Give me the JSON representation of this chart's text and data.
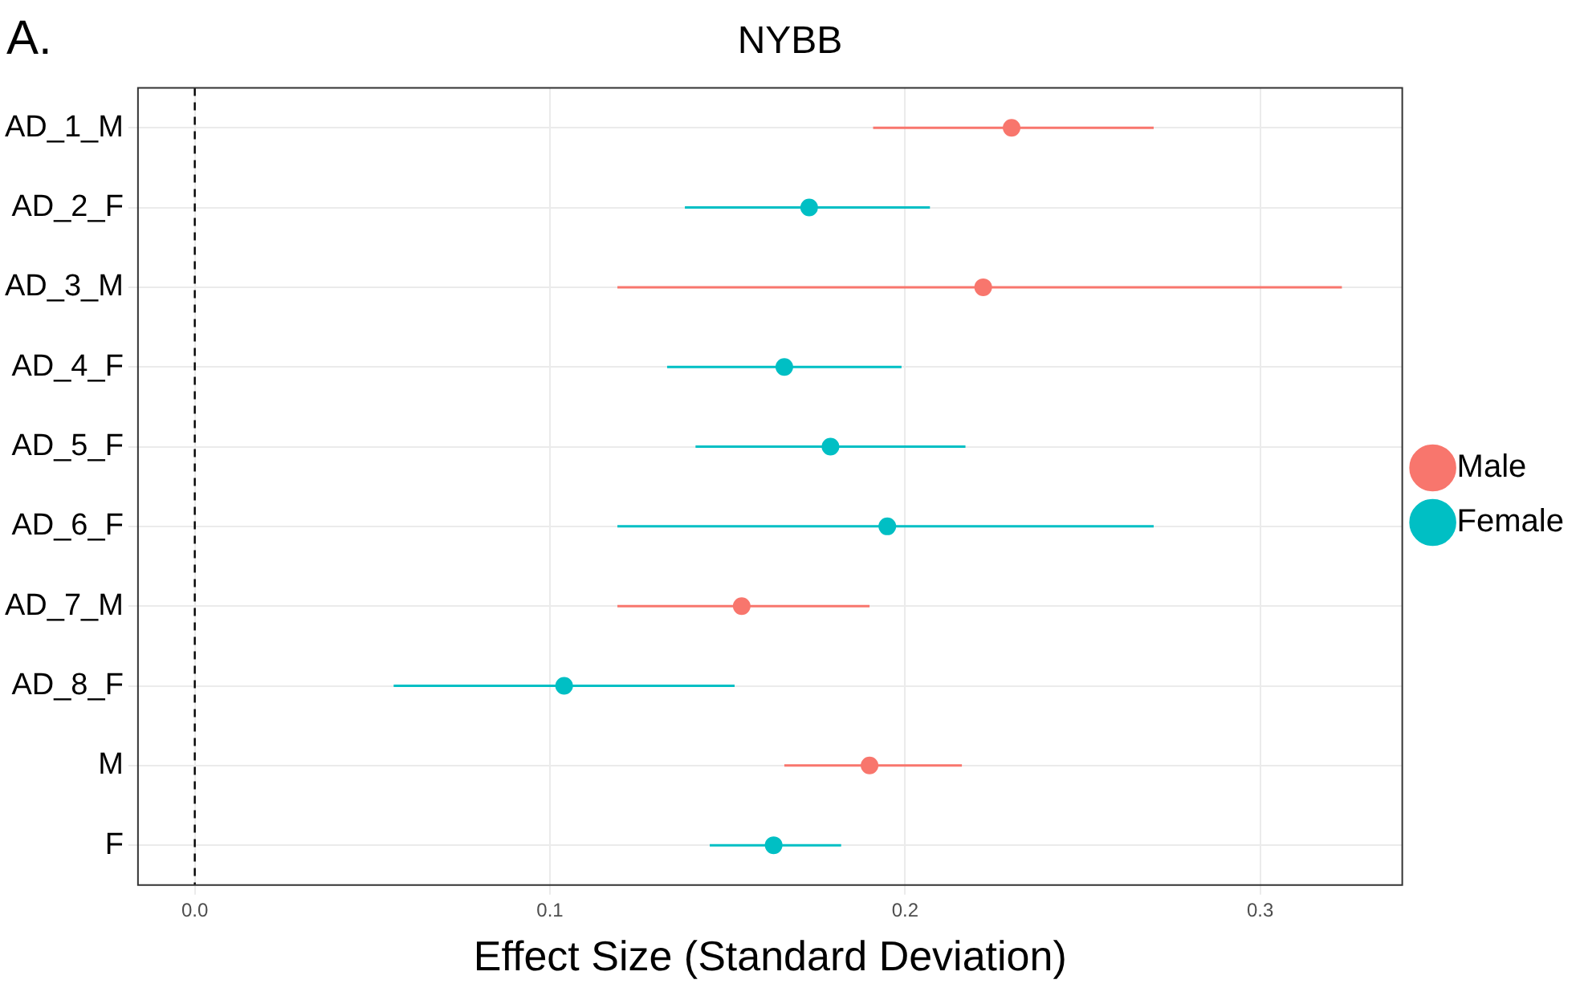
{
  "chart_data": {
    "type": "scatter",
    "orientation": "horizontal",
    "title": "NYBB",
    "xlabel": "Effect Size (Standard Deviation)",
    "annotations": [
      "A."
    ],
    "categories": [
      "AD_1_M",
      "AD_2_F",
      "AD_3_M",
      "AD_4_F",
      "AD_5_F",
      "AD_6_F",
      "AD_7_M",
      "AD_8_F",
      "M",
      "F"
    ],
    "series": [
      {
        "name": "Male",
        "color": "#f8766d",
        "values": [
          0.23,
          null,
          0.222,
          null,
          null,
          null,
          0.154,
          null,
          0.19,
          null
        ],
        "errors": [
          [
            0.191,
            0.27
          ],
          null,
          [
            0.119,
            0.323
          ],
          null,
          null,
          null,
          [
            0.119,
            0.19
          ],
          null,
          [
            0.166,
            0.216
          ],
          null
        ]
      },
      {
        "name": "Female",
        "color": "#00bfc4",
        "values": [
          null,
          0.173,
          null,
          0.166,
          0.179,
          0.195,
          null,
          0.104,
          null,
          0.163
        ],
        "errors": [
          null,
          [
            0.138,
            0.207
          ],
          null,
          [
            0.133,
            0.199
          ],
          [
            0.141,
            0.217
          ],
          [
            0.119,
            0.27
          ],
          null,
          [
            0.056,
            0.152
          ],
          null,
          [
            0.145,
            0.182
          ]
        ]
      }
    ],
    "xlim": [
      -0.016,
      0.34
    ],
    "xticks": [
      {
        "value": 0,
        "label": "0.0"
      },
      0.1,
      0.2,
      0.3
    ],
    "ref_lines": [
      {
        "axis": "x",
        "value": 0,
        "line_style": "dashed",
        "color": "#000000"
      }
    ],
    "grid": true,
    "legend": "right",
    "marker": "circle"
  }
}
